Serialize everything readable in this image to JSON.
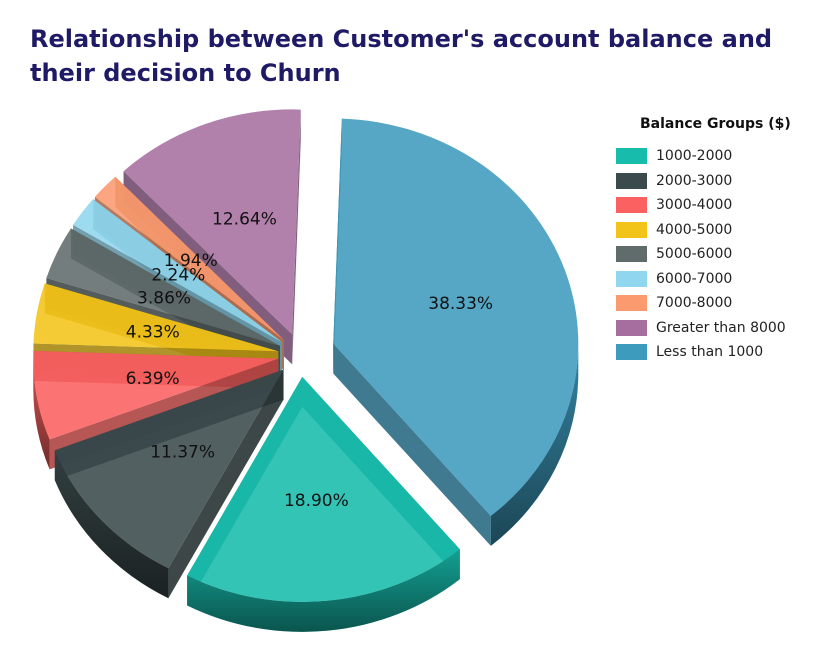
{
  "title": "Relationship between Customer's account balance and their decision to Churn",
  "legend": {
    "title": "Balance Groups ($)",
    "placement": "right"
  },
  "chart_data": {
    "type": "pie",
    "title": "Relationship between Customer's account balance and their decision to Churn",
    "legend_title": "Balance Groups ($)",
    "slices": [
      {
        "label": "Less than 1000",
        "value": 38.33,
        "color": "#3d9bbd"
      },
      {
        "label": "1000-2000",
        "value": 18.9,
        "color": "#17bcac"
      },
      {
        "label": "2000-3000",
        "value": 11.37,
        "color": "#3b4a4c"
      },
      {
        "label": "3000-4000",
        "value": 6.39,
        "color": "#fa6160"
      },
      {
        "label": "4000-5000",
        "value": 4.33,
        "color": "#f2c419"
      },
      {
        "label": "5000-6000",
        "value": 3.86,
        "color": "#606b6b"
      },
      {
        "label": "6000-7000",
        "value": 2.24,
        "color": "#8fd6ee"
      },
      {
        "label": "7000-8000",
        "value": 1.94,
        "color": "#fb9a6e"
      },
      {
        "label": "Greater than 8000",
        "value": 12.64,
        "color": "#a66e9f"
      }
    ],
    "legend_order": [
      "1000-2000",
      "2000-3000",
      "3000-4000",
      "4000-5000",
      "5000-6000",
      "6000-7000",
      "7000-8000",
      "Greater than 8000",
      "Less than 1000"
    ],
    "value_labels": [
      "38.33%",
      "18.90%",
      "11.37%",
      "6.39%",
      "4.33%",
      "3.86%",
      "2.24%",
      "1.94%",
      "12.64%"
    ]
  }
}
